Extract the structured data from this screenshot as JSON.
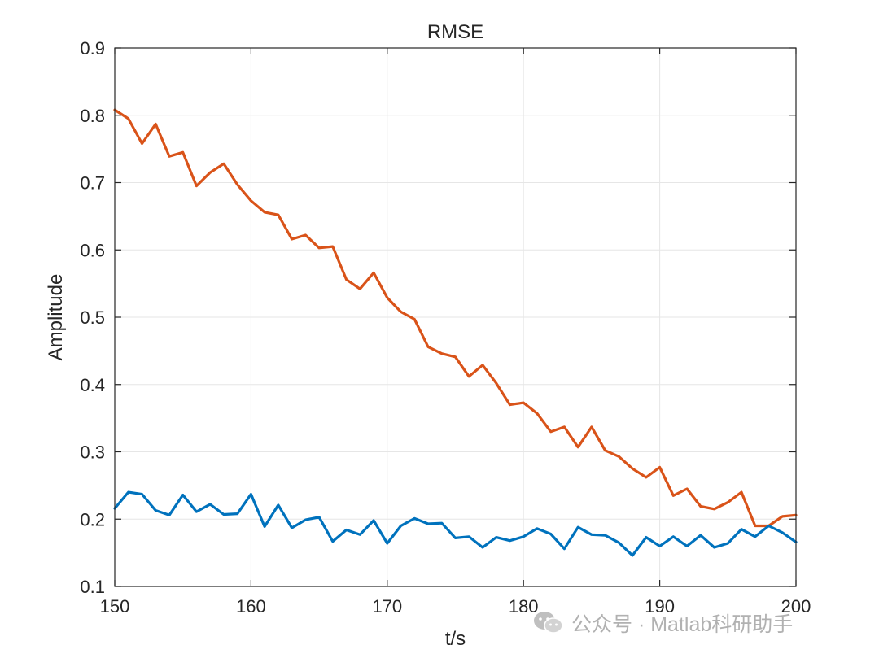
{
  "chart_data": {
    "type": "line",
    "title": "RMSE",
    "xlabel": "t/s",
    "ylabel": "Amplitude",
    "xlim": [
      150,
      200
    ],
    "ylim": [
      0.1,
      0.9
    ],
    "grid": true,
    "x_ticks": [
      150,
      160,
      170,
      180,
      190,
      200
    ],
    "y_ticks": [
      0.1,
      0.2,
      0.3,
      0.4,
      0.5,
      0.6,
      0.7,
      0.8,
      0.9
    ],
    "x_tick_labels": [
      "150",
      "160",
      "170",
      "180",
      "190",
      "200"
    ],
    "y_tick_labels": [
      "0.1",
      "0.2",
      "0.3",
      "0.4",
      "0.5",
      "0.6",
      "0.7",
      "0.8",
      "0.9"
    ],
    "x": [
      150,
      151,
      152,
      153,
      154,
      155,
      156,
      157,
      158,
      159,
      160,
      161,
      162,
      163,
      164,
      165,
      166,
      167,
      168,
      169,
      170,
      171,
      172,
      173,
      174,
      175,
      176,
      177,
      178,
      179,
      180,
      181,
      182,
      183,
      184,
      185,
      186,
      187,
      188,
      189,
      190,
      191,
      192,
      193,
      194,
      195,
      196,
      197,
      198,
      199,
      200
    ],
    "series": [
      {
        "name": "series-orange",
        "color": "#D95319",
        "values": [
          0.808,
          0.795,
          0.758,
          0.787,
          0.739,
          0.745,
          0.695,
          0.715,
          0.728,
          0.697,
          0.673,
          0.656,
          0.652,
          0.616,
          0.622,
          0.603,
          0.605,
          0.556,
          0.542,
          0.566,
          0.529,
          0.508,
          0.497,
          0.456,
          0.446,
          0.441,
          0.412,
          0.429,
          0.402,
          0.37,
          0.373,
          0.357,
          0.33,
          0.337,
          0.307,
          0.337,
          0.302,
          0.293,
          0.275,
          0.262,
          0.277,
          0.235,
          0.245,
          0.219,
          0.215,
          0.225,
          0.24,
          0.19,
          0.19,
          0.204,
          0.206
        ]
      },
      {
        "name": "series-blue",
        "color": "#0072BD",
        "values": [
          0.216,
          0.24,
          0.237,
          0.213,
          0.206,
          0.236,
          0.211,
          0.222,
          0.207,
          0.208,
          0.237,
          0.189,
          0.221,
          0.187,
          0.199,
          0.203,
          0.167,
          0.184,
          0.177,
          0.198,
          0.164,
          0.19,
          0.201,
          0.193,
          0.194,
          0.172,
          0.174,
          0.158,
          0.173,
          0.168,
          0.174,
          0.186,
          0.178,
          0.156,
          0.188,
          0.177,
          0.176,
          0.165,
          0.146,
          0.173,
          0.16,
          0.174,
          0.16,
          0.176,
          0.158,
          0.164,
          0.185,
          0.174,
          0.19,
          0.18,
          0.166
        ]
      }
    ]
  },
  "watermark": {
    "text": "公众号 · Matlab科研助手",
    "icon": "wechat-icon"
  }
}
